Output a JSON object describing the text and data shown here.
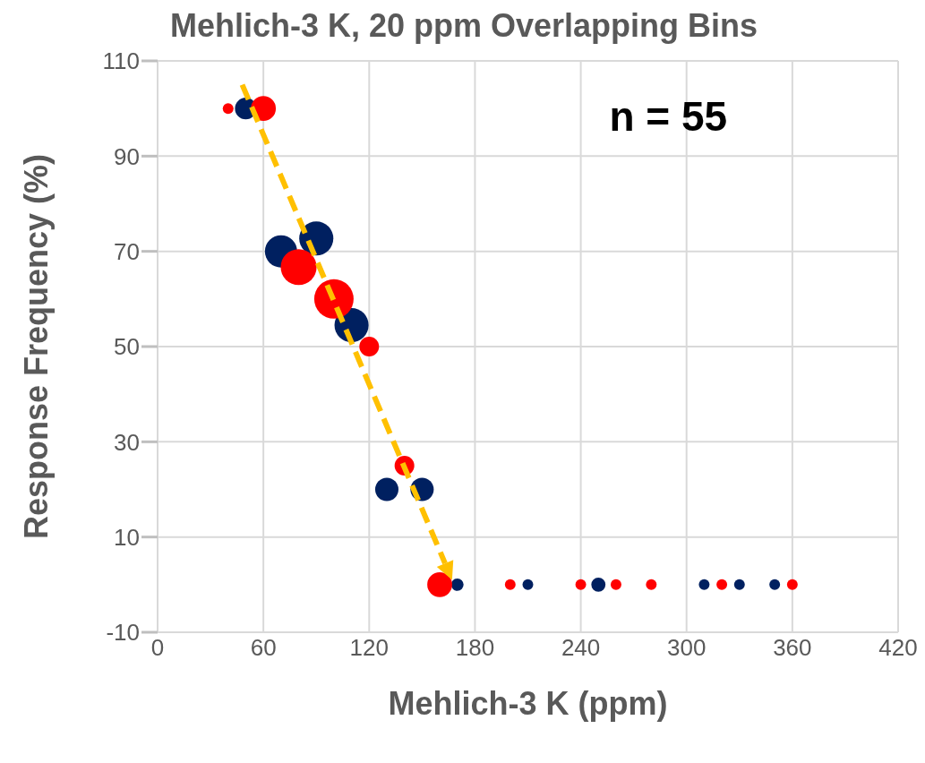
{
  "chart_data": {
    "type": "bubble",
    "title": "Mehlich-3 K, 20 ppm Overlapping Bins",
    "xlabel": "Mehlich-3 K (ppm)",
    "ylabel": "Response Frequency (%)",
    "annotations": [
      "n = 55"
    ],
    "series": [
      {
        "color": "#002060",
        "x": [
          50,
          70,
          90,
          110,
          130,
          150,
          170,
          210,
          250,
          310,
          330,
          350
        ],
        "values": [
          100,
          70,
          72.7,
          54.5,
          20,
          20,
          0,
          0,
          0,
          0,
          0,
          0
        ],
        "sizes": [
          0.3,
          0.67,
          0.75,
          0.75,
          0.35,
          0.35,
          0.1,
          0.074,
          0.13,
          0.074,
          0.074,
          0.074
        ]
      },
      {
        "color": "#ff0000",
        "x": [
          40,
          60,
          80,
          100,
          120,
          140,
          160,
          200,
          240,
          260,
          280,
          320,
          360
        ],
        "values": [
          100,
          100,
          66.7,
          60,
          50,
          25,
          0,
          0,
          0,
          0,
          0,
          0,
          0
        ],
        "sizes": [
          0.074,
          0.4,
          0.83,
          1,
          0.25,
          0.25,
          0.4,
          0.074,
          0.074,
          0.074,
          0.074,
          0.074,
          0.074
        ]
      }
    ],
    "xlim": [
      0,
      420
    ],
    "xticks": [
      0,
      60,
      120,
      180,
      240,
      300,
      360,
      420
    ],
    "ylim": [
      -10,
      110
    ],
    "yticks": [
      -10,
      10,
      30,
      50,
      70,
      90,
      110
    ],
    "grid": true,
    "legend": false
  }
}
